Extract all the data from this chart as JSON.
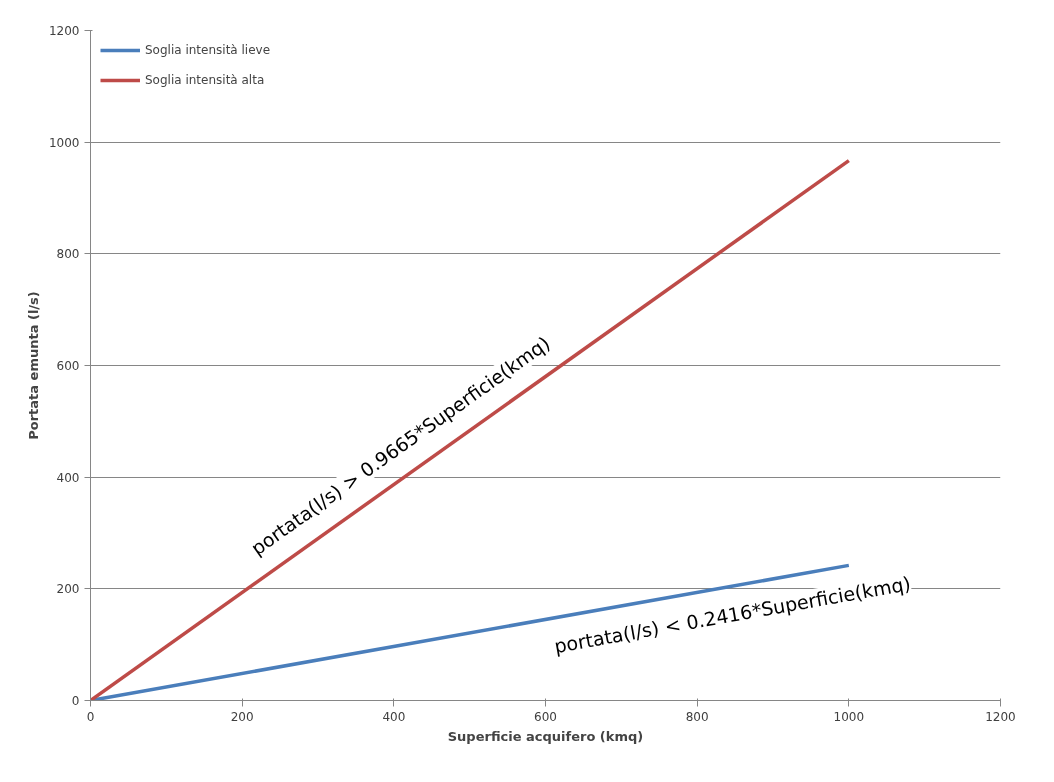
{
  "chart_data": {
    "type": "line",
    "xlabel": "Superficie acquifero (kmq)",
    "ylabel": "Portata emunta (l/s)",
    "xlim": [
      0,
      1200
    ],
    "xticks": [
      0,
      200,
      400,
      600,
      800,
      1000,
      1200
    ],
    "ylim": [
      0,
      1200
    ],
    "yticks": [
      0,
      200,
      400,
      600,
      800,
      1000,
      1200
    ],
    "grid": "y",
    "legend": "top left",
    "x": [
      0,
      1000
    ],
    "series": [
      {
        "name": "Soglia intensità lieve",
        "color": "#4a7ebb",
        "values": [
          0,
          242
        ]
      },
      {
        "name": "Soglia intensità alta",
        "color": "#be4b48",
        "values": [
          0,
          967
        ]
      }
    ],
    "annotations": [
      "portata(l/s) < 0.2416*Superficie(kmq)",
      "portata(l/s) > 0.9665*Superficie(kmq)"
    ]
  }
}
